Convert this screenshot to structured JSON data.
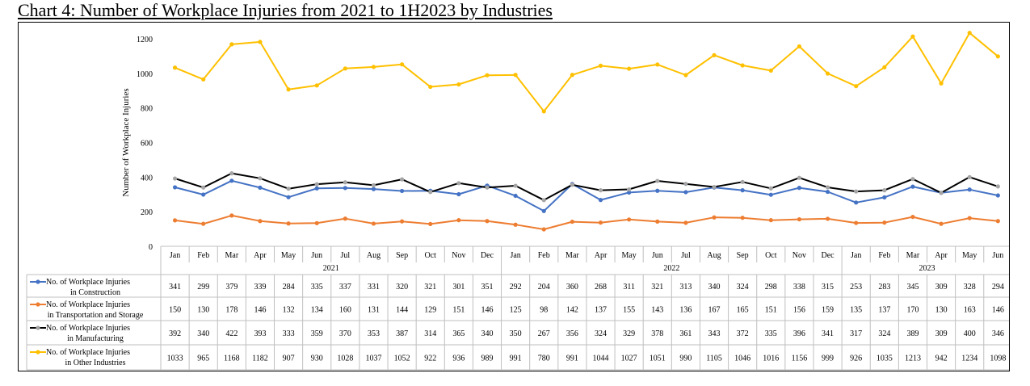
{
  "chart_data": {
    "type": "line",
    "title": "Chart 4: Number of Workplace Injuries from 2021 to 1H2023 by Industries",
    "ylabel": "Number of Workplace Injuries",
    "xlabel": "",
    "ylim": [
      0,
      1200
    ],
    "yticks": [
      "0",
      "200",
      "400",
      "600",
      "800",
      "1000",
      "1200"
    ],
    "legend_placement": "data-table-left",
    "grid": false,
    "categories": [
      "Jan",
      "Feb",
      "Mar",
      "Apr",
      "May",
      "Jun",
      "Jul",
      "Aug",
      "Sep",
      "Oct",
      "Nov",
      "Dec",
      "Jan",
      "Feb",
      "Mar",
      "Apr",
      "May",
      "Jun",
      "Jul",
      "Aug",
      "Sep",
      "Oct",
      "Nov",
      "Dec",
      "Jan",
      "Feb",
      "Mar",
      "Apr",
      "May",
      "Jun"
    ],
    "years": [
      {
        "label": "2021",
        "months": 12
      },
      {
        "label": "2022",
        "months": 12
      },
      {
        "label": "2023",
        "months": 6
      }
    ],
    "series": [
      {
        "name_line1": "No. of Workplace Injuries",
        "name_line2": "in Construction",
        "color": "#4472c4",
        "values": [
          341,
          299,
          379,
          339,
          284,
          335,
          337,
          331,
          320,
          321,
          301,
          351,
          292,
          204,
          360,
          268,
          311,
          321,
          313,
          340,
          324,
          298,
          338,
          315,
          253,
          283,
          345,
          309,
          328,
          294
        ]
      },
      {
        "name_line1": "No. of Workplace Injuries",
        "name_line2": "in Transportation and Storage",
        "color": "#ed7d31",
        "values": [
          150,
          130,
          178,
          146,
          132,
          134,
          160,
          131,
          144,
          129,
          151,
          146,
          125,
          98,
          142,
          137,
          155,
          143,
          136,
          167,
          165,
          151,
          156,
          159,
          135,
          137,
          170,
          130,
          163,
          146
        ]
      },
      {
        "name_line1": "No. of Workplace Injuries",
        "name_line2": "in Manufacturing",
        "color": "#000000",
        "marker_color": "#a5a5a5",
        "values": [
          392,
          340,
          422,
          393,
          333,
          359,
          370,
          353,
          387,
          314,
          365,
          340,
          350,
          267,
          356,
          324,
          329,
          378,
          361,
          343,
          372,
          335,
          396,
          341,
          317,
          324,
          389,
          309,
          400,
          346
        ]
      },
      {
        "name_line1": "No. of Workplace Injuries",
        "name_line2": "in Other Industries",
        "color": "#ffc000",
        "values": [
          1033,
          965,
          1168,
          1182,
          907,
          930,
          1028,
          1037,
          1052,
          922,
          936,
          989,
          991,
          780,
          991,
          1044,
          1027,
          1051,
          990,
          1105,
          1046,
          1016,
          1156,
          999,
          926,
          1035,
          1213,
          942,
          1234,
          1098
        ]
      }
    ]
  }
}
